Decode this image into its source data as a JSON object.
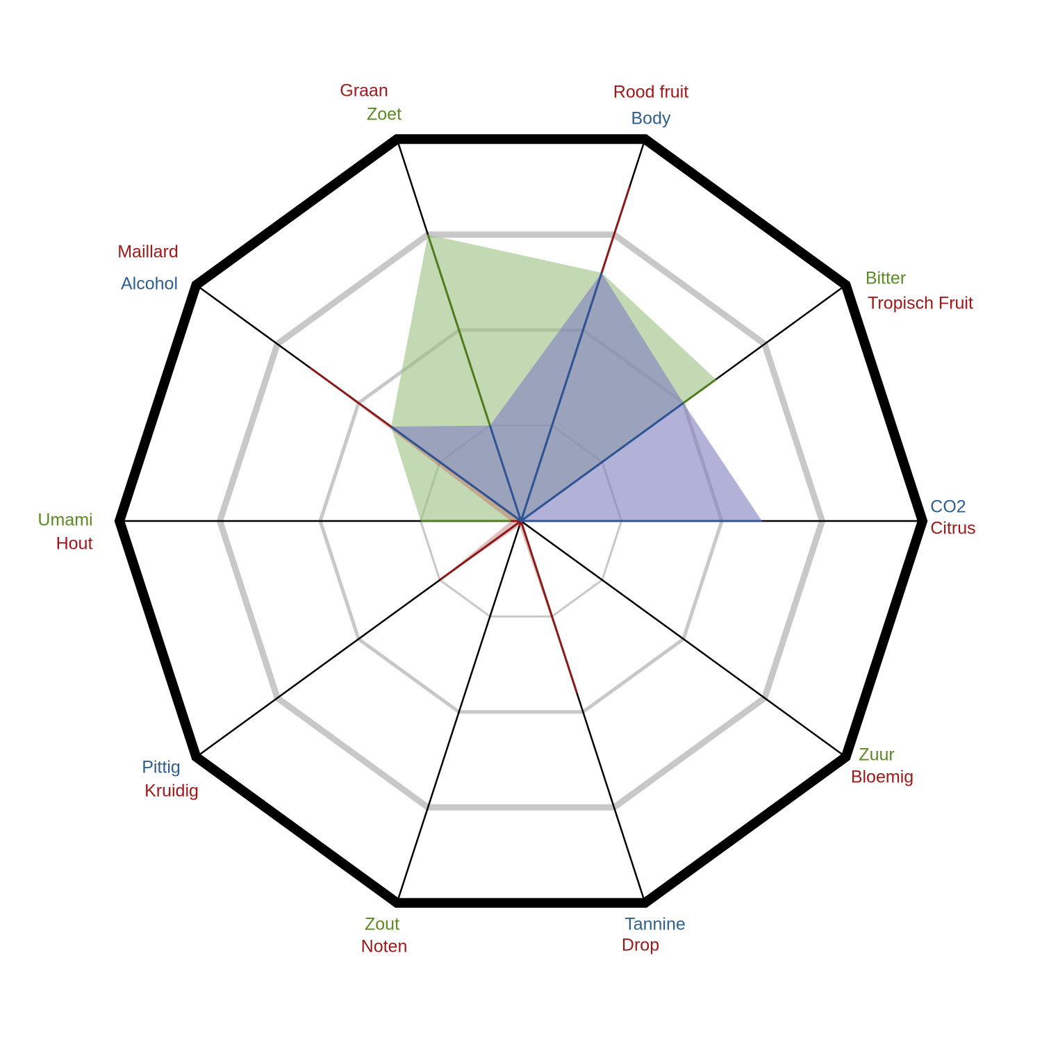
{
  "chart_data": {
    "type": "radar",
    "axes": [
      {
        "labels": [
          {
            "text": "CO2",
            "group": "blue"
          },
          {
            "text": "Citrus",
            "group": "red"
          }
        ]
      },
      {
        "labels": [
          {
            "text": "Bitter",
            "group": "green"
          },
          {
            "text": "Tropisch Fruit",
            "group": "red"
          }
        ]
      },
      {
        "labels": [
          {
            "text": "Rood fruit",
            "group": "red"
          },
          {
            "text": "Body",
            "group": "blue"
          }
        ]
      },
      {
        "labels": [
          {
            "text": "Graan",
            "group": "red"
          },
          {
            "text": "Zoet",
            "group": "green"
          }
        ]
      },
      {
        "labels": [
          {
            "text": "Maillard",
            "group": "red"
          },
          {
            "text": "Alcohol",
            "group": "blue"
          }
        ]
      },
      {
        "labels": [
          {
            "text": "Umami",
            "group": "green"
          },
          {
            "text": "Hout",
            "group": "red"
          }
        ]
      },
      {
        "labels": [
          {
            "text": "Pittig",
            "group": "blue"
          },
          {
            "text": "Kruidig",
            "group": "red"
          }
        ]
      },
      {
        "labels": [
          {
            "text": "Zout",
            "group": "green"
          },
          {
            "text": "Noten",
            "group": "red"
          }
        ]
      },
      {
        "labels": [
          {
            "text": "Tannine",
            "group": "blue"
          },
          {
            "text": "Drop",
            "group": "red"
          }
        ]
      },
      {
        "labels": [
          {
            "text": "Zuur",
            "group": "green"
          },
          {
            "text": "Bloemig",
            "group": "red"
          }
        ]
      }
    ],
    "scale_max": 4,
    "rings": [
      1,
      2,
      3
    ],
    "series": [
      {
        "group": "green",
        "fill": "#9bbf80",
        "fill_opacity": 0.6,
        "stroke": "#4f7c1e",
        "values": [
          0,
          2.4,
          2.6,
          3.0,
          1.6,
          1.0,
          0,
          0,
          0,
          0
        ]
      },
      {
        "group": "red",
        "fill": "#b85c5c",
        "fill_opacity": 0.4,
        "stroke": "#8b1a1a",
        "values": [
          0,
          0,
          3.5,
          0,
          2.6,
          0.1,
          1.0,
          0.05,
          1.8,
          0
        ]
      },
      {
        "group": "blue",
        "fill": "#7f7fbf",
        "fill_opacity": 0.6,
        "stroke": "#2f5597",
        "values": [
          2.4,
          2.0,
          2.6,
          1.0,
          1.6,
          0,
          0,
          0,
          0,
          0
        ]
      }
    ],
    "colors": {
      "red": "#a01818",
      "green": "#5a8a22",
      "blue": "#2f5f8f",
      "outline": "#000000",
      "ring": "#c8c8c8"
    }
  }
}
